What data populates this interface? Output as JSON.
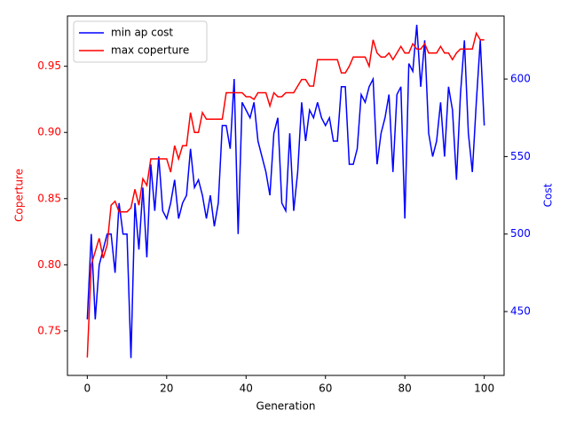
{
  "chart_data": {
    "type": "line",
    "xlabel": "Generation",
    "ylabel": "Coperture",
    "y2label": "Cost",
    "x": [
      0,
      1,
      2,
      3,
      4,
      5,
      6,
      7,
      8,
      9,
      10,
      11,
      12,
      13,
      14,
      15,
      16,
      17,
      18,
      19,
      20,
      21,
      22,
      23,
      24,
      25,
      26,
      27,
      28,
      29,
      30,
      31,
      32,
      33,
      34,
      35,
      36,
      37,
      38,
      39,
      40,
      41,
      42,
      43,
      44,
      45,
      46,
      47,
      48,
      49,
      50,
      51,
      52,
      53,
      54,
      55,
      56,
      57,
      58,
      59,
      60,
      61,
      62,
      63,
      64,
      65,
      66,
      67,
      68,
      69,
      70,
      71,
      72,
      73,
      74,
      75,
      76,
      77,
      78,
      79,
      80,
      81,
      82,
      83,
      84,
      85,
      86,
      87,
      88,
      89,
      90,
      91,
      92,
      93,
      94,
      95,
      96,
      97,
      98,
      99,
      100
    ],
    "series": [
      {
        "name": "min ap cost",
        "color": "#0000ff",
        "axis": "y2",
        "values": [
          445,
          500,
          445,
          480,
          490,
          500,
          500,
          475,
          520,
          500,
          500,
          420,
          520,
          490,
          530,
          485,
          545,
          515,
          550,
          515,
          510,
          520,
          535,
          510,
          520,
          525,
          555,
          530,
          535,
          525,
          510,
          525,
          505,
          520,
          570,
          570,
          555,
          600,
          500,
          585,
          580,
          575,
          585,
          560,
          550,
          540,
          525,
          565,
          575,
          520,
          515,
          565,
          515,
          540,
          585,
          560,
          580,
          575,
          585,
          575,
          570,
          575,
          560,
          560,
          595,
          595,
          545,
          545,
          555,
          590,
          585,
          595,
          600,
          545,
          565,
          575,
          590,
          540,
          590,
          595,
          510,
          610,
          605,
          635,
          595,
          625,
          565,
          550,
          560,
          585,
          550,
          595,
          580,
          535,
          590,
          625,
          565,
          540,
          585,
          625,
          570
        ]
      },
      {
        "name": "max coperture",
        "color": "#ff0000",
        "values": [
          0.73,
          0.8,
          0.81,
          0.82,
          0.805,
          0.815,
          0.845,
          0.848,
          0.84,
          0.84,
          0.84,
          0.843,
          0.857,
          0.845,
          0.865,
          0.86,
          0.88,
          0.88,
          0.88,
          0.88,
          0.88,
          0.87,
          0.89,
          0.88,
          0.89,
          0.89,
          0.915,
          0.9,
          0.9,
          0.915,
          0.91,
          0.91,
          0.91,
          0.91,
          0.91,
          0.93,
          0.93,
          0.93,
          0.93,
          0.93,
          0.927,
          0.927,
          0.925,
          0.93,
          0.93,
          0.93,
          0.92,
          0.93,
          0.927,
          0.927,
          0.93,
          0.93,
          0.93,
          0.935,
          0.94,
          0.94,
          0.935,
          0.935,
          0.955,
          0.955,
          0.955,
          0.955,
          0.955,
          0.955,
          0.945,
          0.945,
          0.95,
          0.957,
          0.957,
          0.957,
          0.957,
          0.95,
          0.97,
          0.96,
          0.957,
          0.957,
          0.96,
          0.955,
          0.96,
          0.965,
          0.96,
          0.96,
          0.967,
          0.963,
          0.963,
          0.967,
          0.96,
          0.96,
          0.96,
          0.965,
          0.96,
          0.96,
          0.955,
          0.96,
          0.963,
          0.963,
          0.963,
          0.963,
          0.975,
          0.97,
          0.97
        ]
      }
    ],
    "xlim": [
      -5,
      105
    ],
    "ylim": [
      0.7164,
      0.988
    ],
    "y2lim": [
      408.8,
      640.7
    ],
    "xticks": [
      0,
      20,
      40,
      60,
      80,
      100
    ],
    "yticks": [
      0.75,
      {
        "value": 0.8,
        "label": "0.80"
      },
      0.85,
      {
        "value": 0.9,
        "label": "0.90"
      },
      0.95
    ],
    "y2ticks": [
      450,
      500,
      550,
      600
    ],
    "legend": "upper left"
  }
}
